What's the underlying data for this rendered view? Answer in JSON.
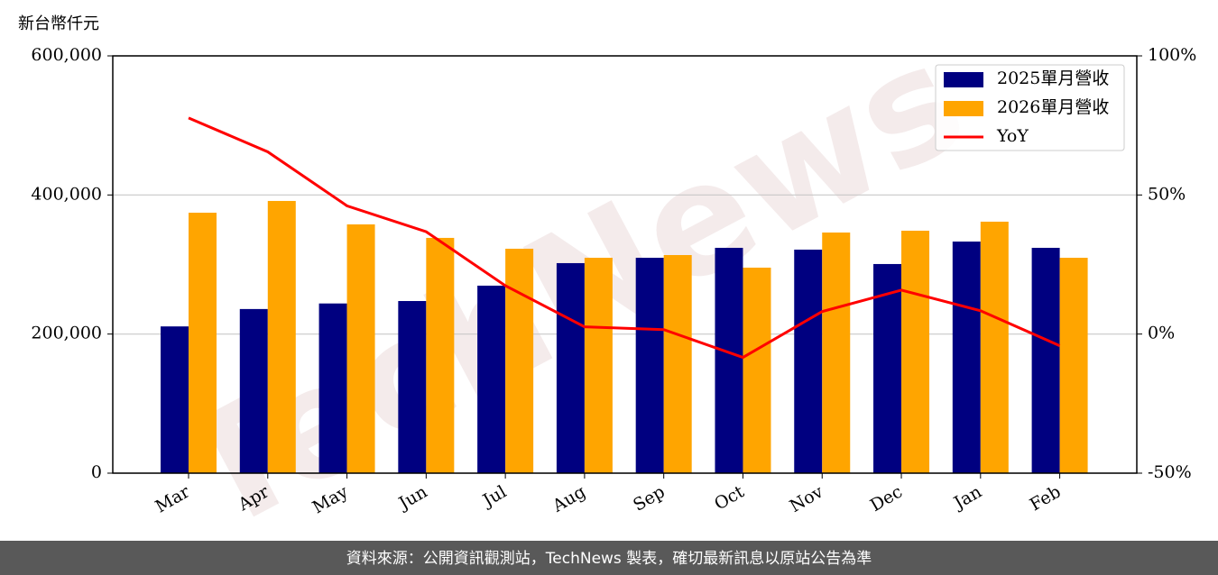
{
  "chart_data": {
    "type": "bar",
    "unit_label": "新台幣仟元",
    "watermark": "TechNews",
    "footer": "資料來源：公開資訊觀測站，TechNews 製表，確切最新訊息以原站公告為準",
    "categories": [
      "Mar",
      "Apr",
      "May",
      "Jun",
      "Jul",
      "Aug",
      "Sep",
      "Oct",
      "Nov",
      "Dec",
      "Jan",
      "Feb"
    ],
    "series": [
      {
        "name": "2025單月營收",
        "type": "bar",
        "color": "#000080",
        "values": [
          211000,
          236000,
          244000,
          247500,
          269600,
          302000,
          309700,
          324000,
          321400,
          300700,
          333000,
          324000
        ]
      },
      {
        "name": "2026單月營收",
        "type": "bar",
        "color": "#ffa500",
        "values": [
          374500,
          391400,
          357700,
          338300,
          322700,
          309700,
          313600,
          295500,
          346000,
          348600,
          361600,
          309700
        ]
      },
      {
        "name": "YoY",
        "type": "line",
        "axis": "y2",
        "color": "#ff0000",
        "values": [
          77.7,
          65.5,
          46.1,
          36.8,
          17.4,
          2.6,
          1.6,
          -8.4,
          8.1,
          15.8,
          8.4,
          -4.2
        ]
      }
    ],
    "ylim": [
      0,
      600000
    ],
    "yticks": [
      0,
      {
        "value": 200000,
        "label": "200,000"
      },
      {
        "value": 400000,
        "label": "400,000"
      },
      {
        "value": 600000,
        "label": "600,000"
      }
    ],
    "y2lim": [
      -50,
      100
    ],
    "y2ticks": [
      {
        "value": -50,
        "label": "-50%"
      },
      {
        "value": 0,
        "label": "0%"
      },
      {
        "value": 50,
        "label": "50%"
      },
      {
        "value": 100,
        "label": "100%"
      }
    ],
    "grid": true,
    "legend": "upper right"
  }
}
